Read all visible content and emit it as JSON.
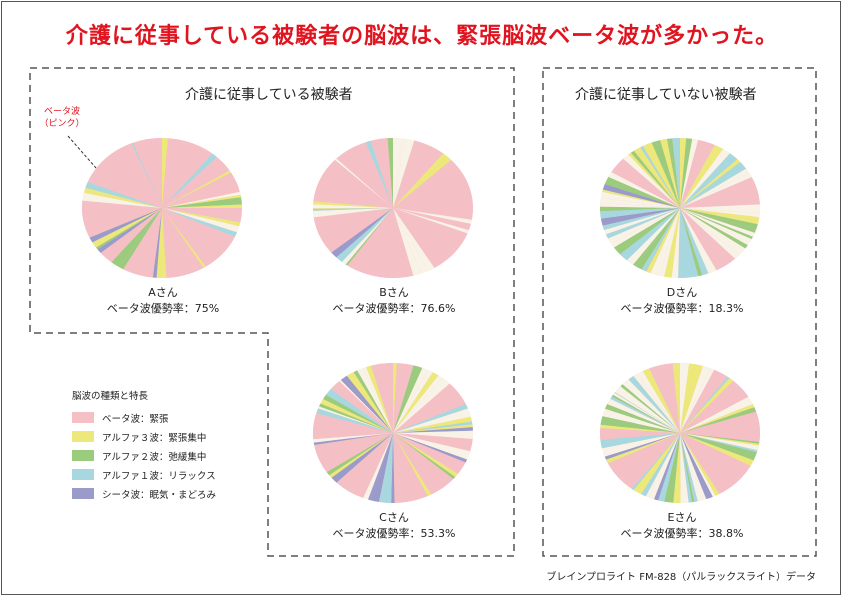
{
  "headline": "介護に従事している被験者の脳波は、緊張脳波ベータ波が多かった。",
  "groups": {
    "caregivers": "介護に従事している被験者",
    "non_caregivers": "介護に従事していない被験者"
  },
  "pointer": {
    "line1": "ベータ波",
    "line2": "（ピンク）"
  },
  "legend": {
    "title": "脳波の種類と特長",
    "items": [
      {
        "label": "ベータ波：緊張",
        "color": "#f4c0c6"
      },
      {
        "label": "アルファ３波：緊張集中",
        "color": "#ece87a"
      },
      {
        "label": "アルファ２波：弛緩集中",
        "color": "#9bcc7e"
      },
      {
        "label": "アルファ１波：リラックス",
        "color": "#a8d8df"
      },
      {
        "label": "シータ波：眠気・まどろみ",
        "color": "#9a9acb"
      }
    ]
  },
  "subjects": [
    {
      "name": "Aさん",
      "rate_text": "ベータ波優勢率：75%"
    },
    {
      "name": "Bさん",
      "rate_text": "ベータ波優勢率：76.6%"
    },
    {
      "name": "Cさん",
      "rate_text": "ベータ波優勢率：53.3%"
    },
    {
      "name": "Dさん",
      "rate_text": "ベータ波優勢率：18.3%"
    },
    {
      "name": "Eさん",
      "rate_text": "ベータ波優勢率：38.8%"
    }
  ],
  "source": "ブレインプロライト FM-828（パルラックスライト）データ",
  "chart_data": [
    {
      "type": "pie",
      "group": "介護に従事している被験者",
      "subject": "Aさん",
      "series": [
        {
          "name": "ベータ波",
          "value": 75.0
        },
        {
          "name": "アルファ３波",
          "value": 9.0
        },
        {
          "name": "アルファ２波",
          "value": 5.0
        },
        {
          "name": "アルファ１波",
          "value": 4.0
        },
        {
          "name": "シータ波",
          "value": 3.0
        },
        {
          "value": 4.0
        }
      ]
    },
    {
      "type": "pie",
      "group": "介護に従事している被験者",
      "subject": "Bさん",
      "series": [
        {
          "name": "ベータ波",
          "value": 76.6
        },
        {
          "name": "アルファ３波",
          "value": 3.0
        },
        {
          "name": "アルファ２波",
          "value": 1.5
        },
        {
          "name": "アルファ１波",
          "value": 3.0
        },
        {
          "name": "シータ波",
          "value": 1.5
        },
        {
          "value": 14.4
        }
      ]
    },
    {
      "type": "pie",
      "group": "介護に従事している被験者",
      "subject": "Cさん",
      "series": [
        {
          "name": "ベータ波",
          "value": 53.3
        },
        {
          "name": "アルファ３波",
          "value": 10.0
        },
        {
          "name": "アルファ２波",
          "value": 6.0
        },
        {
          "name": "アルファ１波",
          "value": 7.0
        },
        {
          "name": "シータ波",
          "value": 8.0
        },
        {
          "value": 15.7
        }
      ]
    },
    {
      "type": "pie",
      "group": "介護に従事していない被験者",
      "subject": "Dさん",
      "series": [
        {
          "name": "ベータ波",
          "value": 18.3
        },
        {
          "name": "アルファ３波",
          "value": 14.0
        },
        {
          "name": "アルファ２波",
          "value": 16.0
        },
        {
          "name": "アルファ１波",
          "value": 18.0
        },
        {
          "name": "シータ波",
          "value": 3.0
        },
        {
          "value": 30.7
        }
      ]
    },
    {
      "type": "pie",
      "group": "介護に従事していない被験者",
      "subject": "Eさん",
      "series": [
        {
          "name": "ベータ波",
          "value": 38.8
        },
        {
          "name": "アルファ３波",
          "value": 15.0
        },
        {
          "name": "アルファ２波",
          "value": 10.0
        },
        {
          "name": "アルファ１波",
          "value": 9.0
        },
        {
          "name": "シータ波",
          "value": 3.0
        },
        {
          "value": 24.2
        }
      ]
    }
  ],
  "other_color": "#f8f3e6"
}
